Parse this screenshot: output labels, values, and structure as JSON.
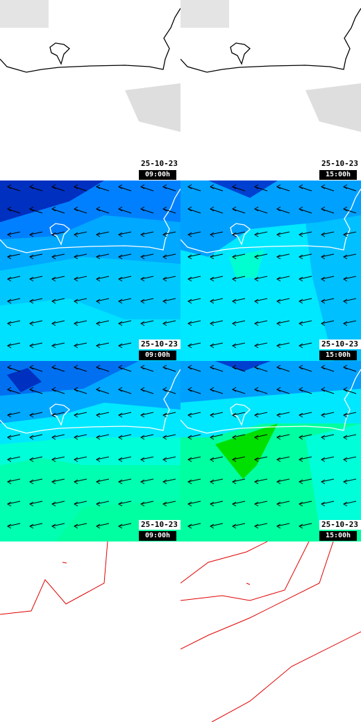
{
  "panels": [
    {
      "date": "25-10-23",
      "time": "09:00h"
    },
    {
      "date": "25-10-23",
      "time": "15:00h"
    },
    {
      "date": "25-10-23",
      "time": "09:00h"
    },
    {
      "date": "25-10-23",
      "time": "15:00h"
    },
    {
      "date": "25-10-23",
      "time": "09:00h"
    },
    {
      "date": "25-10-23",
      "time": "15:00h"
    }
  ]
}
